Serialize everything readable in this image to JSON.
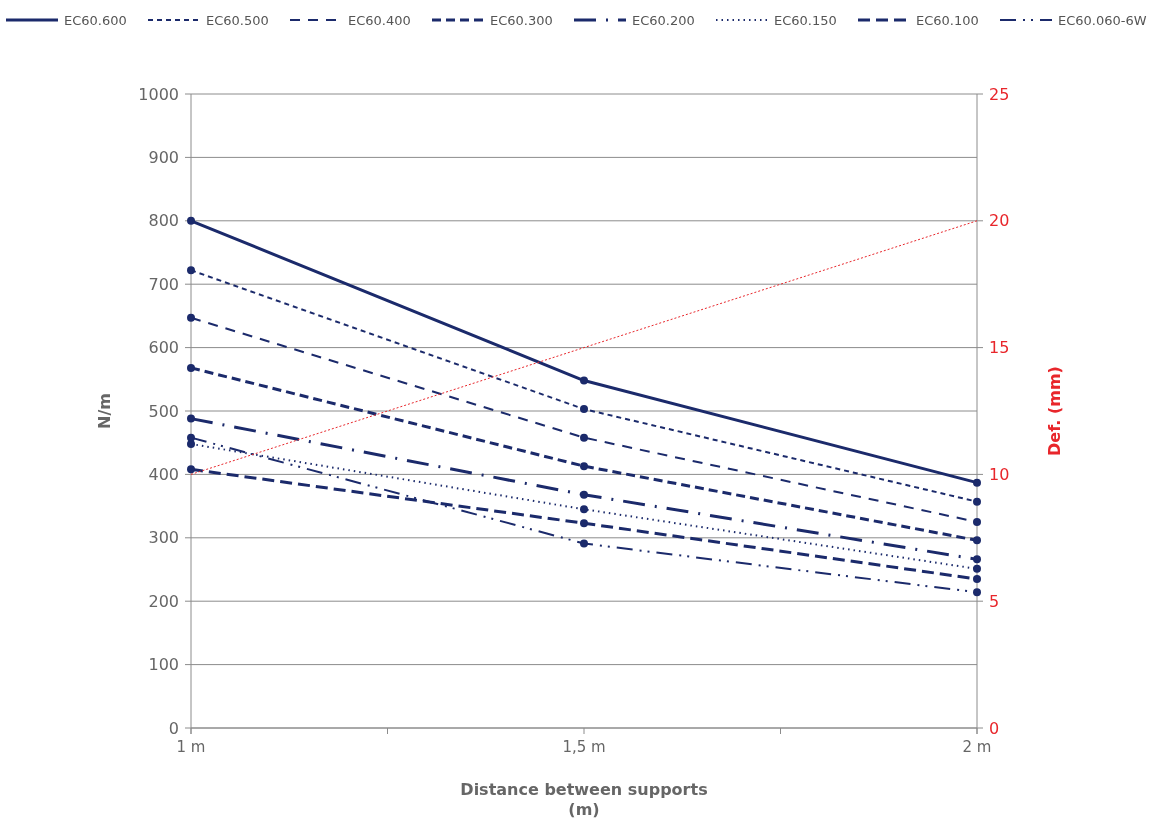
{
  "chart_data": {
    "type": "line",
    "xlabel": "Distance between supports\n(m)",
    "ylabel": "N/m",
    "y2label": "Def. (mm)",
    "x": [
      1,
      1.5,
      2
    ],
    "xlim": [
      1,
      2
    ],
    "xticks": [
      {
        "value": 1,
        "label": "1 m"
      },
      {
        "value": 1.25,
        "label": null
      },
      {
        "value": 1.5,
        "label": "1,5 m"
      },
      {
        "value": 1.75,
        "label": null
      },
      {
        "value": 2,
        "label": "2 m"
      }
    ],
    "ylim": [
      0,
      1000
    ],
    "yticks": [
      0,
      100,
      200,
      300,
      400,
      500,
      600,
      700,
      800,
      900,
      1000
    ],
    "y2lim": [
      0,
      25
    ],
    "y2ticks": [
      0,
      5,
      10,
      15,
      20,
      25
    ],
    "grid": "y",
    "legend": "top",
    "marker": "circle",
    "series": [
      {
        "name": "EC60.600",
        "color": "#1b2a6b",
        "line_style": "solid",
        "values": [
          800,
          548,
          387
        ]
      },
      {
        "name": "EC60.500",
        "color": "#1b2a6b",
        "line_style": "dashed",
        "values": [
          722,
          503,
          357
        ]
      },
      {
        "name": "EC60.400",
        "color": "#1b2a6b",
        "line_style": "dashed",
        "values": [
          647,
          458,
          325
        ]
      },
      {
        "name": "EC60.300",
        "color": "#1b2a6b",
        "line_style": "dashed",
        "values": [
          568,
          413,
          296
        ]
      },
      {
        "name": "EC60.200",
        "color": "#1b2a6b",
        "line_style": "dashed",
        "values": [
          488,
          368,
          266
        ]
      },
      {
        "name": "EC60.150",
        "color": "#1b2a6b",
        "line_style": "dotted",
        "values": [
          448,
          345,
          251
        ]
      },
      {
        "name": "EC60.100",
        "color": "#1b2a6b",
        "line_style": "dashed",
        "values": [
          408,
          323,
          235
        ]
      },
      {
        "name": "EC60.060-6W",
        "color": "#1b2a6b",
        "line_style": "dashed",
        "values": [
          458,
          291,
          214
        ]
      },
      {
        "color": "#e8262b",
        "axis": "y2",
        "line_style": "dotted",
        "marker": "none",
        "values": [
          10,
          15,
          20
        ]
      }
    ]
  }
}
